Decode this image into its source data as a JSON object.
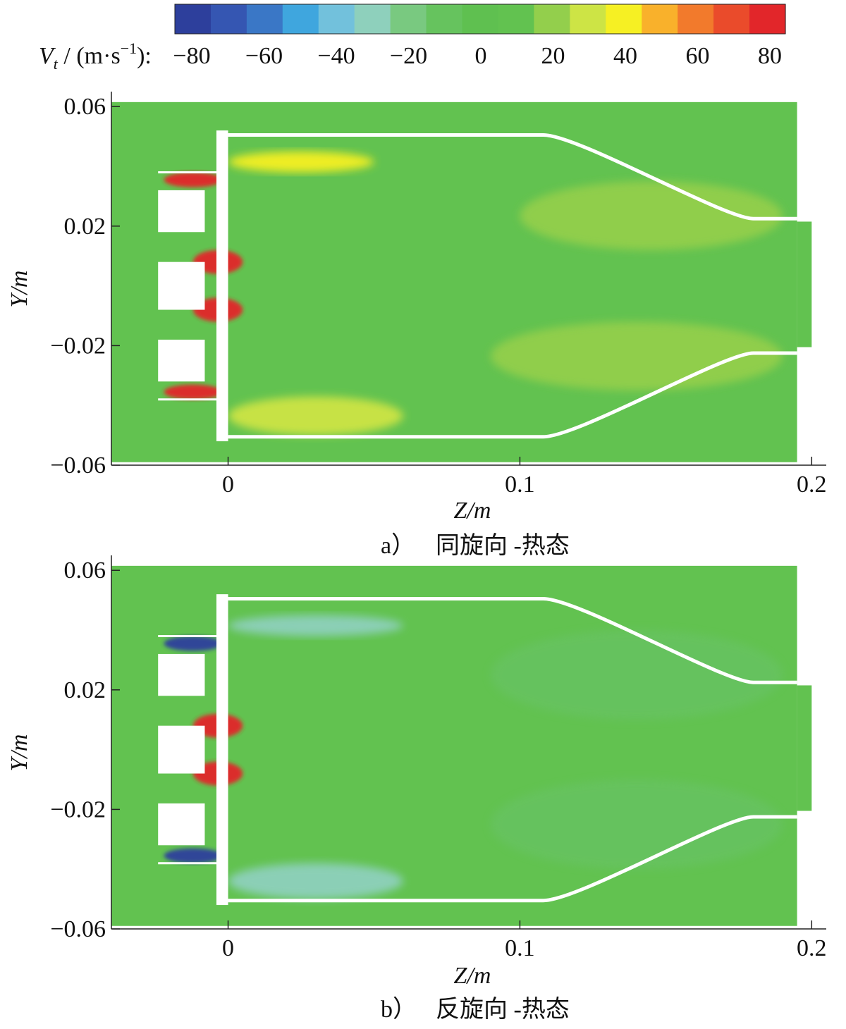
{
  "colorbar": {
    "label_prefix": "V",
    "label_subscript": "t",
    "label_units": "(m·s",
    "label_exp": "−1",
    "label_close": "):",
    "ticks": [
      "−80",
      "−60",
      "−40",
      "−20",
      "0",
      "20",
      "40",
      "60",
      "80"
    ],
    "range": [
      -85,
      85
    ],
    "colors": [
      "#2d3f9c",
      "#3556b2",
      "#3a77c6",
      "#3fa6de",
      "#72c1dc",
      "#8ed0bc",
      "#79c980",
      "#66c35e",
      "#5fc050",
      "#62c250",
      "#93cf4c",
      "#cde445",
      "#f6f023",
      "#f9b12b",
      "#f27a2c",
      "#ea4b2b",
      "#e2262a"
    ]
  },
  "chart_data": [
    {
      "type": "heatmap",
      "panel_id": "a",
      "caption_letter": "a）",
      "caption_text": "同旋向 -热态",
      "xlabel": "Z/m",
      "ylabel": "Y/m",
      "xlim": [
        -0.04,
        0.205
      ],
      "ylim": [
        -0.06,
        0.065
      ],
      "xticks": [
        "0",
        "0.1",
        "0.2"
      ],
      "xtick_values": [
        0,
        0.1,
        0.2
      ],
      "yticks": [
        "0.06",
        "0.02",
        "−0.02",
        "−0.06"
      ],
      "ytick_values": [
        0.06,
        0.02,
        -0.02,
        -0.06
      ],
      "background_value": 5,
      "regions": [
        {
          "z": [
            0.1,
            0.19
          ],
          "y": [
            0.035,
            0.012
          ],
          "value": 22
        },
        {
          "z": [
            0.09,
            0.19
          ],
          "y": [
            -0.012,
            -0.035
          ],
          "value": 22
        },
        {
          "z": [
            0.0,
            0.05
          ],
          "y": [
            0.045,
            0.038
          ],
          "value": 35
        },
        {
          "z": [
            0.0,
            0.06
          ],
          "y": [
            -0.037,
            -0.05
          ],
          "value": 30
        },
        {
          "z": [
            -0.022,
            -0.002
          ],
          "y": [
            0.038,
            0.033
          ],
          "value": 80
        },
        {
          "z": [
            -0.012,
            0.005
          ],
          "y": [
            0.012,
            0.004
          ],
          "value": 80
        },
        {
          "z": [
            -0.012,
            0.005
          ],
          "y": [
            -0.004,
            -0.012
          ],
          "value": 80
        },
        {
          "z": [
            -0.022,
            -0.002
          ],
          "y": [
            -0.033,
            -0.038
          ],
          "value": 80
        }
      ]
    },
    {
      "type": "heatmap",
      "panel_id": "b",
      "caption_letter": "b）",
      "caption_text": "反旋向 -热态",
      "xlabel": "Z/m",
      "ylabel": "Y/m",
      "xlim": [
        -0.04,
        0.205
      ],
      "ylim": [
        -0.06,
        0.065
      ],
      "xticks": [
        "0",
        "0.1",
        "0.2"
      ],
      "xtick_values": [
        0,
        0.1,
        0.2
      ],
      "yticks": [
        "0.06",
        "0.02",
        "−0.02",
        "−0.06"
      ],
      "ytick_values": [
        0.06,
        0.02,
        -0.02,
        -0.06
      ],
      "background_value": 5,
      "regions": [
        {
          "z": [
            0.09,
            0.19
          ],
          "y": [
            0.04,
            0.01
          ],
          "value": -10
        },
        {
          "z": [
            0.09,
            0.19
          ],
          "y": [
            -0.01,
            -0.04
          ],
          "value": -10
        },
        {
          "z": [
            0.0,
            0.06
          ],
          "y": [
            0.045,
            0.038
          ],
          "value": -35
        },
        {
          "z": [
            0.0,
            0.06
          ],
          "y": [
            -0.038,
            -0.05
          ],
          "value": -35
        },
        {
          "z": [
            -0.022,
            -0.002
          ],
          "y": [
            0.038,
            0.033
          ],
          "value": -80
        },
        {
          "z": [
            -0.012,
            0.005
          ],
          "y": [
            0.012,
            0.004
          ],
          "value": 80
        },
        {
          "z": [
            -0.012,
            0.005
          ],
          "y": [
            -0.004,
            -0.012
          ],
          "value": 80
        },
        {
          "z": [
            -0.022,
            -0.002
          ],
          "y": [
            -0.033,
            -0.038
          ],
          "value": -80
        }
      ]
    }
  ]
}
